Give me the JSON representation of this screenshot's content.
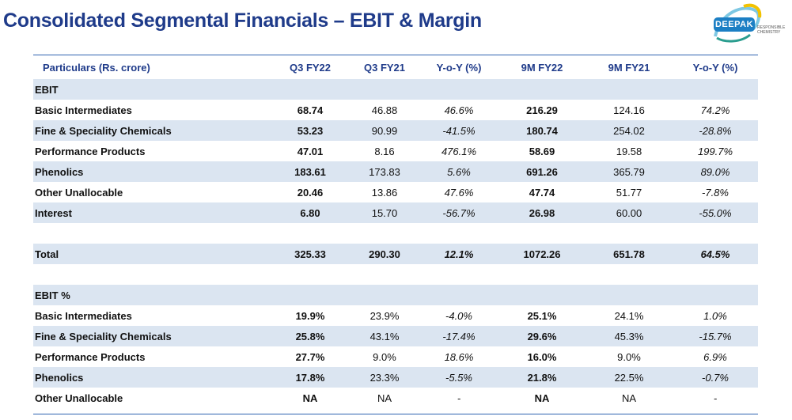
{
  "header": {
    "title": "Consolidated Segmental Financials – EBIT & Margin",
    "logo_text": "DEEPAK",
    "logo_tagline": "RESPONSIBLE CHEMISTRY"
  },
  "colors": {
    "title": "#1f3b8a",
    "band": "#dbe5f1",
    "rule": "#2e62b0",
    "logo": "#1c7fc4"
  },
  "table": {
    "columns": [
      "Particulars (Rs. crore)",
      "Q3 FY22",
      "Q3 FY21",
      "Y-o-Y (%)",
      "9M FY22",
      "9M FY21",
      "Y-o-Y  (%)"
    ],
    "ebit_section_label": "EBIT",
    "ebit_rows": [
      {
        "label": "Basic Intermediates",
        "values": [
          "68.74",
          "46.88",
          "46.6%",
          "216.29",
          "124.16",
          "74.2%"
        ]
      },
      {
        "label": "Fine & Speciality Chemicals",
        "values": [
          "53.23",
          "90.99",
          "-41.5%",
          "180.74",
          "254.02",
          "-28.8%"
        ]
      },
      {
        "label": "Performance Products",
        "values": [
          "47.01",
          "8.16",
          "476.1%",
          "58.69",
          "19.58",
          "199.7%"
        ]
      },
      {
        "label": "Phenolics",
        "values": [
          "183.61",
          "173.83",
          "5.6%",
          "691.26",
          "365.79",
          "89.0%"
        ]
      },
      {
        "label": "Other Unallocable",
        "values": [
          "20.46",
          "13.86",
          "47.6%",
          "47.74",
          "51.77",
          "-7.8%"
        ]
      },
      {
        "label": "Interest",
        "values": [
          "6.80",
          "15.70",
          "-56.7%",
          "26.98",
          "60.00",
          "-55.0%"
        ]
      }
    ],
    "total_row": {
      "label": "Total",
      "values": [
        "325.33",
        "290.30",
        "12.1%",
        "1072.26",
        "651.78",
        "64.5%"
      ]
    },
    "margin_section_label": "EBIT %",
    "margin_rows": [
      {
        "label": "Basic Intermediates",
        "values": [
          "19.9%",
          "23.9%",
          "-4.0%",
          "25.1%",
          "24.1%",
          "1.0%"
        ]
      },
      {
        "label": "Fine & Speciality Chemicals",
        "values": [
          "25.8%",
          "43.1%",
          "-17.4%",
          "29.6%",
          "45.3%",
          "-15.7%"
        ]
      },
      {
        "label": "Performance Products",
        "values": [
          "27.7%",
          "9.0%",
          "18.6%",
          "16.0%",
          "9.0%",
          "6.9%"
        ]
      },
      {
        "label": "Phenolics",
        "values": [
          "17.8%",
          "23.3%",
          "-5.5%",
          "21.8%",
          "22.5%",
          "-0.7%"
        ]
      },
      {
        "label": "Other Unallocable",
        "values": [
          "NA",
          "NA",
          "-",
          "NA",
          "NA",
          "-"
        ]
      }
    ]
  }
}
